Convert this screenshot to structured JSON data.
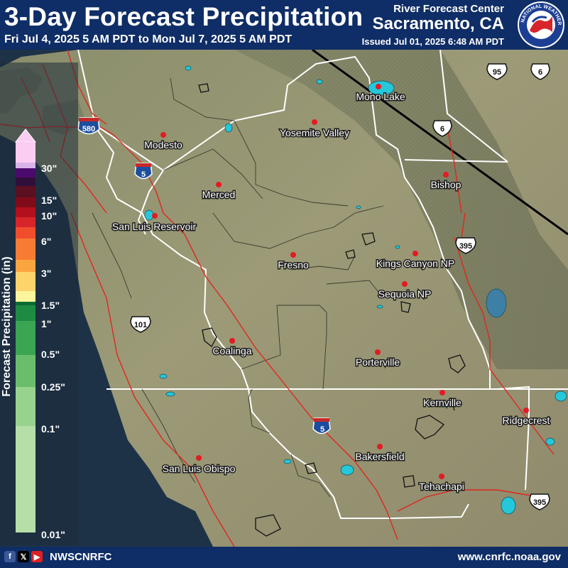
{
  "header": {
    "title": "3-Day Forecast Precipitation",
    "subtitle": "Fri Jul 4, 2025 5 AM PDT to Mon Jul 7, 2025 5 AM PDT",
    "rfc_name": "River Forecast Center",
    "rfc_location": "Sacramento, CA",
    "issued": "Issued Jul 01, 2025 6:48 AM PDT",
    "logo_text": "NATIONAL WEATHER SERVICE"
  },
  "legend": {
    "title": "Forecast Precipitation (in)",
    "labels": [
      "30\"",
      "15\"",
      "10\"",
      "6\"",
      "3\"",
      "1.5\"",
      "1\"",
      "0.5\"",
      "0.25\"",
      "0.1\"",
      "0.01\""
    ],
    "colors": [
      "#fbcdf3",
      "#d9b2e9",
      "#4b0a6e",
      "#30103a",
      "#5a1021",
      "#800b18",
      "#b3101d",
      "#d7262b",
      "#f04d2d",
      "#f77c33",
      "#fba541",
      "#fdd46b",
      "#fdf49e",
      "#0b6b33",
      "#1e8b42",
      "#3aa552",
      "#6abe6b",
      "#97d28e",
      "#b6dfa8",
      "#d2ebc7"
    ]
  },
  "cities": [
    {
      "name": "Mono Lake"
    },
    {
      "name": "Yosemite Valley"
    },
    {
      "name": "Modesto"
    },
    {
      "name": "Bishop"
    },
    {
      "name": "Merced"
    },
    {
      "name": "San Luis Reservoir"
    },
    {
      "name": "Fresno"
    },
    {
      "name": "Kings Canyon NP"
    },
    {
      "name": "Sequoia NP"
    },
    {
      "name": "Coalinga"
    },
    {
      "name": "Porterville"
    },
    {
      "name": "Kernville"
    },
    {
      "name": "Ridgecrest"
    },
    {
      "name": "Bakersfield"
    },
    {
      "name": "San Luis Obispo"
    },
    {
      "name": "Tehachapi"
    }
  ],
  "highways": {
    "i5": "5",
    "i580": "580",
    "us101": "101",
    "us395": "395",
    "us95": "95",
    "us6": "6"
  },
  "footer": {
    "social_icons": [
      "facebook-icon",
      "x-icon",
      "youtube-icon"
    ],
    "handle": "NWSCNRFC",
    "website": "www.cnrfc.noaa.gov"
  }
}
